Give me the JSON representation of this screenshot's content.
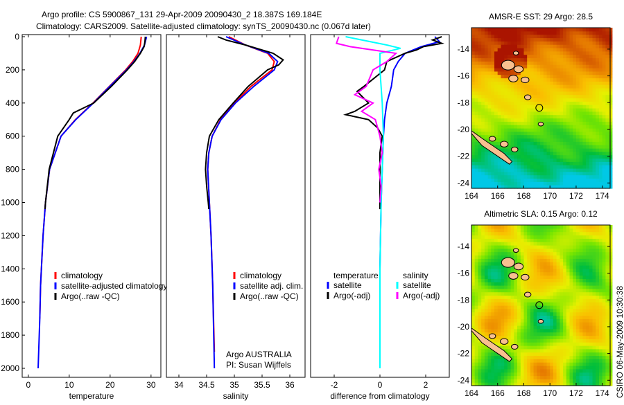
{
  "title_lines": [
    "Argo profile: CS 5900867_131 29-Apr-2009 20090430_2 18.387S 169.184E",
    "Climatology: CARS2009. Satellite-adjusted climatology: synTS_20090430.nc (0.067d later)"
  ],
  "side_label": "CSIRO 06-May-2009 10:30:38",
  "chart_data": [
    {
      "type": "line",
      "xlabel": "temperature",
      "ylabel": "",
      "xlim": [
        -1.5,
        32.4
      ],
      "ylim": [
        0,
        2000
      ],
      "y_reversed": true,
      "xticks": [
        0,
        10,
        20,
        30
      ],
      "yticks": [
        0,
        200,
        400,
        600,
        800,
        1000,
        1200,
        1400,
        1600,
        1800,
        2000
      ],
      "legend": [
        "climatology",
        "satellite-adjusted climatology",
        "Argo(..raw -QC)"
      ],
      "series": [
        {
          "name": "climatology",
          "color": "#ff0000",
          "depth": [
            0,
            50,
            100,
            150,
            200,
            300,
            400,
            500,
            600,
            800,
            1000,
            1200,
            1500,
            1700
          ],
          "values": [
            27.6,
            27.4,
            26.8,
            25.5,
            23.8,
            19.8,
            15.8,
            11.5,
            8.0,
            5.2,
            4.2,
            3.6,
            3.0,
            2.8
          ]
        },
        {
          "name": "satellite-adjusted climatology",
          "color": "#0000ff",
          "depth": [
            0,
            50,
            100,
            150,
            200,
            300,
            400,
            500,
            600,
            800,
            1000,
            1200,
            1500,
            1700,
            2000
          ],
          "values": [
            28.9,
            28.4,
            27.3,
            25.8,
            24.0,
            19.9,
            15.9,
            11.6,
            8.0,
            5.2,
            4.2,
            3.6,
            3.0,
            2.8,
            2.4
          ]
        },
        {
          "name": "Argo(..raw -QC)",
          "color": "#000000",
          "depth": [
            0,
            30,
            60,
            100,
            150,
            200,
            300,
            400,
            460,
            500,
            600,
            800,
            1000,
            1040
          ],
          "values": [
            28.6,
            28.5,
            28.3,
            27.4,
            26.0,
            24.2,
            20.3,
            16.0,
            11.0,
            10.0,
            7.2,
            5.1,
            4.2,
            4.1
          ]
        }
      ]
    },
    {
      "type": "line",
      "xlabel": "salinity",
      "xlim": [
        33.775,
        36.275
      ],
      "ylim": [
        0,
        2000
      ],
      "y_reversed": true,
      "xticks": [
        34,
        34.5,
        35,
        35.5,
        36
      ],
      "legend": [
        "climatology",
        "satellite adj. clim.",
        "Argo(..raw -QC)"
      ],
      "annotation": [
        "Argo AUSTRALIA",
        "PI: Susan Wijffels"
      ],
      "series": [
        {
          "name": "climatology",
          "color": "#ff0000",
          "depth": [
            0,
            50,
            100,
            150,
            200,
            300,
            400,
            500,
            600,
            700,
            800,
            1000,
            1200,
            1500,
            1900
          ],
          "values": [
            34.9,
            35.2,
            35.6,
            35.72,
            35.68,
            35.3,
            35.0,
            34.75,
            34.6,
            34.54,
            34.52,
            34.55,
            34.58,
            34.61,
            34.64
          ]
        },
        {
          "name": "satellite adj. clim.",
          "color": "#0000ff",
          "depth": [
            0,
            50,
            100,
            150,
            200,
            300,
            400,
            500,
            600,
            700,
            800,
            1000,
            1200,
            1500,
            2000
          ],
          "values": [
            34.85,
            35.2,
            35.62,
            35.78,
            35.72,
            35.35,
            35.02,
            34.76,
            34.6,
            34.54,
            34.52,
            34.55,
            34.58,
            34.61,
            34.64
          ]
        },
        {
          "name": "Argo(..raw -QC)",
          "color": "#000000",
          "depth": [
            0,
            20,
            50,
            80,
            100,
            140,
            170,
            200,
            300,
            400,
            500,
            600,
            700,
            800,
            900,
            1000,
            1040
          ],
          "values": [
            34.7,
            34.85,
            35.2,
            35.5,
            35.7,
            35.88,
            35.8,
            35.6,
            35.25,
            34.98,
            34.72,
            34.55,
            34.5,
            34.48,
            34.5,
            34.53,
            34.54
          ]
        }
      ]
    },
    {
      "type": "line",
      "xlabel": "difference from climatology",
      "xlim": [
        -3.03,
        3.03
      ],
      "ylim": [
        0,
        2000
      ],
      "y_reversed": true,
      "xticks": [
        -2,
        0,
        2
      ],
      "legend_headers": [
        "temperature",
        "salinity"
      ],
      "legend": [
        "satellite",
        "Argo(-adj)",
        "satellite",
        "Argo(-adj)"
      ],
      "series": [
        {
          "name": "temperature satellite",
          "color": "#0000ff",
          "depth": [
            0,
            30,
            60,
            100,
            150,
            200,
            300,
            400,
            500,
            600,
            800,
            1000,
            1400,
            2000
          ],
          "values": [
            2.4,
            2.6,
            1.8,
            1.1,
            0.8,
            0.6,
            0.5,
            0.3,
            0.2,
            0.15,
            0.1,
            0.05,
            0.0,
            0.0
          ]
        },
        {
          "name": "temperature Argo(-adj)",
          "color": "#000000",
          "depth": [
            0,
            20,
            40,
            60,
            80,
            100,
            150,
            200,
            300,
            330,
            400,
            450,
            470,
            500,
            550,
            600,
            700,
            800,
            1000,
            1040
          ],
          "values": [
            2.7,
            2.3,
            2.7,
            1.9,
            1.6,
            1.1,
            0.3,
            0.2,
            -0.7,
            -1.0,
            -0.5,
            -1.1,
            -1.5,
            -0.5,
            -0.1,
            0.1,
            0.0,
            0.0,
            0.0,
            0.0
          ]
        },
        {
          "name": "salinity satellite",
          "color": "#00ffff",
          "depth": [
            0,
            50,
            70,
            100,
            200,
            400,
            600,
            800,
            1000,
            1400,
            2000
          ],
          "values": [
            -1.5,
            0.3,
            0.9,
            0.0,
            0.0,
            0.1,
            0.15,
            0.1,
            0.05,
            0.0,
            0.0
          ]
        },
        {
          "name": "salinity Argo(-adj)",
          "color": "#ff00ff",
          "depth": [
            0,
            40,
            60,
            100,
            150,
            200,
            300,
            350,
            400,
            450,
            500,
            600,
            700,
            800,
            900,
            1000
          ],
          "values": [
            -1.8,
            -1.9,
            -1.3,
            0.7,
            0.3,
            -0.3,
            -0.6,
            -1.1,
            -0.3,
            -0.8,
            -0.2,
            0.0,
            0.1,
            -0.05,
            0.05,
            0.0
          ]
        }
      ]
    },
    {
      "type": "heatmap",
      "title": "AMSR-E SST: 29 Argo: 28.5",
      "xlim": [
        164,
        174.6
      ],
      "ylim": [
        -24.4,
        -12.4
      ],
      "xticks": [
        164,
        166,
        168,
        170,
        172,
        174
      ],
      "yticks": [
        -14,
        -16,
        -18,
        -20,
        -22,
        -24
      ],
      "argo_position": [
        169.184,
        -18.387
      ]
    },
    {
      "type": "heatmap",
      "title": "Altimetric SLA: 0.15 Argo: 0.12",
      "xlim": [
        164,
        174.6
      ],
      "ylim": [
        -24.4,
        -12.4
      ],
      "xticks": [
        164,
        166,
        168,
        170,
        172,
        174
      ],
      "yticks": [
        -14,
        -16,
        -18,
        -20,
        -22,
        -24
      ],
      "argo_position": [
        169.184,
        -18.387
      ]
    }
  ]
}
